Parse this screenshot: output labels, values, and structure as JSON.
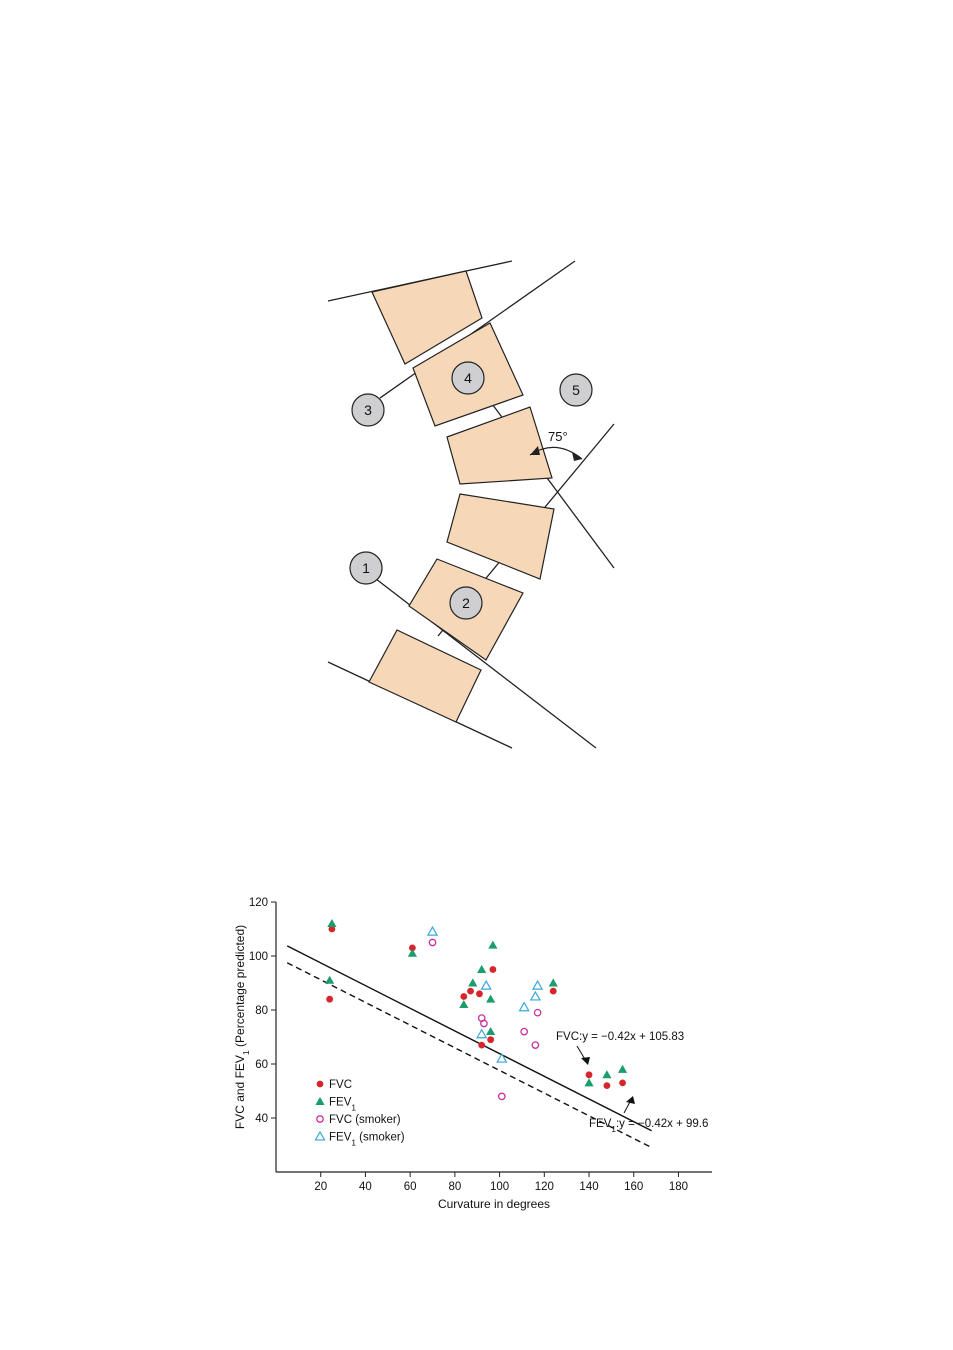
{
  "diagram": {
    "markers": [
      "1",
      "2",
      "3",
      "4",
      "5"
    ],
    "angle_label": "75°",
    "colors": {
      "vertebra_fill": "#f6d8b9",
      "marker_fill": "#cfcfd1",
      "line": "#222222"
    }
  },
  "chart_data": {
    "type": "scatter",
    "xlabel": "Curvature in degrees",
    "ylabel": "FVC and FEV1 (Percentage predicted)",
    "xlim": [
      0,
      195
    ],
    "ylim": [
      20,
      120
    ],
    "xticks": [
      20,
      40,
      60,
      80,
      100,
      120,
      140,
      160,
      180
    ],
    "yticks": [
      40,
      60,
      80,
      100,
      120
    ],
    "grid": false,
    "legend_placement": "bottom-left",
    "series": [
      {
        "name": "FVC",
        "marker": "filled-circle",
        "color": "#d7262b",
        "points": [
          [
            24,
            84
          ],
          [
            25,
            110
          ],
          [
            61,
            103
          ],
          [
            84,
            85
          ],
          [
            87,
            87
          ],
          [
            91,
            86
          ],
          [
            92,
            67
          ],
          [
            96,
            69
          ],
          [
            97,
            95
          ],
          [
            124,
            87
          ],
          [
            140,
            56
          ],
          [
            148,
            52
          ],
          [
            155,
            53
          ]
        ]
      },
      {
        "name": "FEV1",
        "marker": "filled-triangle",
        "color": "#1b9d6c",
        "points": [
          [
            24,
            91
          ],
          [
            25,
            112
          ],
          [
            61,
            101
          ],
          [
            84,
            82
          ],
          [
            88,
            90
          ],
          [
            92,
            95
          ],
          [
            96,
            72
          ],
          [
            96,
            84
          ],
          [
            97,
            104
          ],
          [
            124,
            90
          ],
          [
            140,
            53
          ],
          [
            148,
            56
          ],
          [
            155,
            58
          ]
        ]
      },
      {
        "name": "FVC (smoker)",
        "marker": "open-circle",
        "color": "#c8309d",
        "points": [
          [
            70,
            105
          ],
          [
            92,
            77
          ],
          [
            93,
            75
          ],
          [
            101,
            48
          ],
          [
            111,
            72
          ],
          [
            116,
            67
          ],
          [
            117,
            79
          ]
        ]
      },
      {
        "name": "FEV1 (smoker)",
        "marker": "open-triangle",
        "color": "#3aa7d9",
        "points": [
          [
            70,
            109
          ],
          [
            92,
            71
          ],
          [
            94,
            89
          ],
          [
            101,
            62
          ],
          [
            111,
            81
          ],
          [
            116,
            85
          ],
          [
            117,
            89
          ]
        ]
      }
    ],
    "lines": [
      {
        "label": "FVC:y = −0.42x + 105.83",
        "slope": -0.42,
        "intercept": 105.83,
        "x_range": [
          5,
          168
        ],
        "style": "solid"
      },
      {
        "label": "FEV1:y = −0.42x + 99.6",
        "slope": -0.42,
        "intercept": 99.6,
        "x_range": [
          5,
          168
        ],
        "style": "dashed"
      }
    ]
  }
}
